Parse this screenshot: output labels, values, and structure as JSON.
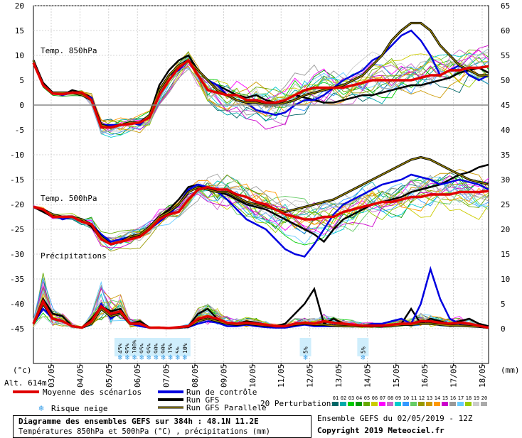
{
  "chart_data": {
    "type": "line",
    "date_labels": [
      "03/05",
      "04/05",
      "05/05",
      "06/05",
      "07/05",
      "08/05",
      "09/05",
      "10/05",
      "11/05",
      "12/05",
      "13/05",
      "14/05",
      "15/05",
      "16/05",
      "17/05",
      "18/05"
    ],
    "left_axis_ticks": [
      "20",
      "15",
      "10",
      "5",
      "0",
      "-5",
      "-10",
      "-15",
      "-20",
      "-25",
      "-30",
      "-35",
      "-40",
      "-45"
    ],
    "right_axis_ticks": [
      "65",
      "60",
      "55",
      "50",
      "45",
      "40",
      "35",
      "30",
      "25",
      "20",
      "15",
      "10",
      "5",
      "0"
    ],
    "left_unit": "(°c)",
    "right_unit": "(mm)",
    "altitude": "Alt. 614m",
    "panels": {
      "t850_label": "Temp. 850hPa",
      "t500_label": "Temp. 500hPa",
      "precip_label": "Précipitations"
    },
    "series": [
      {
        "name": "Moyenne des scénarios",
        "color": "#e00000",
        "t850": [
          8.5,
          4,
          2.3,
          2.2,
          2.5,
          2.5,
          1,
          -4.5,
          -4.5,
          -4,
          -3.8,
          -3.5,
          -2.5,
          2,
          5,
          7.5,
          9,
          6,
          3,
          2.5,
          2,
          2,
          1,
          1,
          0.5,
          0.5,
          1,
          2,
          3,
          3.5,
          3.5,
          3.5,
          3.5,
          4,
          4.5,
          5,
          5,
          5,
          5,
          5,
          5.5,
          6,
          6,
          7,
          7,
          7.5,
          7.5,
          7.8
        ],
        "t500": [
          -20.5,
          -21,
          -22.5,
          -22.5,
          -22.5,
          -23.5,
          -24,
          -27,
          -28,
          -27.5,
          -27,
          -26.5,
          -25,
          -23,
          -22,
          -21.5,
          -19,
          -17,
          -16.5,
          -17,
          -17,
          -18,
          -18.5,
          -19.5,
          -20,
          -21,
          -22,
          -22.5,
          -23,
          -23,
          -22.5,
          -22.5,
          -21.5,
          -21,
          -20.5,
          -20,
          -19.5,
          -19.5,
          -19,
          -18.5,
          -18.5,
          -18,
          -18,
          -18,
          -17.5,
          -17.5,
          -17.5,
          -17.3
        ],
        "precip": [
          1,
          5.5,
          2,
          1.5,
          0.5,
          0.2,
          1.5,
          4.5,
          3,
          3.5,
          1,
          1,
          0.2,
          0.2,
          0.1,
          0.3,
          0.5,
          2,
          2.5,
          2,
          1.2,
          1,
          1.2,
          1,
          0.8,
          0.5,
          0.5,
          1,
          1.2,
          1,
          1.5,
          1.2,
          1,
          0.8,
          0.6,
          0.6,
          0.6,
          0.8,
          1,
          1,
          1.5,
          1.5,
          1.2,
          1,
          1.2,
          1,
          0.6,
          0.2
        ]
      },
      {
        "name": "Run de contrôle",
        "color": "#0000e0",
        "t850": [
          9,
          4,
          2.5,
          2,
          2.5,
          2,
          1.5,
          -4,
          -4,
          -4,
          -3.5,
          -4,
          -2,
          3,
          6,
          7,
          9,
          7,
          5,
          4,
          2,
          1,
          0.5,
          -1,
          -1.5,
          -2,
          -1.5,
          0,
          1,
          1,
          2,
          3.5,
          5,
          6,
          7,
          9,
          10,
          12,
          14,
          15,
          13,
          10,
          6,
          7,
          8,
          6,
          5,
          6
        ],
        "t500": [
          -20.5,
          -21,
          -22,
          -23,
          -22.5,
          -23,
          -24,
          -26,
          -27.5,
          -27,
          -26.5,
          -26,
          -25,
          -23.5,
          -22,
          -20,
          -17,
          -16,
          -16.5,
          -17.5,
          -19,
          -21,
          -23,
          -24,
          -25,
          -27,
          -29,
          -30,
          -30.5,
          -28,
          -25,
          -22,
          -20,
          -19,
          -18,
          -17,
          -16,
          -15.5,
          -15,
          -14,
          -14.5,
          -15,
          -16,
          -15.5,
          -15,
          -15.5,
          -16,
          -17
        ],
        "precip": [
          1,
          4,
          2,
          1.5,
          0.5,
          0.2,
          1,
          5,
          2,
          3.5,
          1,
          0.5,
          0.2,
          0.2,
          0.1,
          0.2,
          0.3,
          1,
          1.5,
          1.2,
          0.5,
          0.5,
          0.8,
          0.5,
          0.3,
          0.2,
          0.2,
          0.5,
          0.8,
          0.5,
          0.5,
          0.5,
          0.5,
          0.5,
          0.5,
          1,
          1,
          1.5,
          2,
          1,
          5,
          12,
          6,
          2,
          1,
          1,
          0.5,
          0.3
        ]
      },
      {
        "name": "Run GFS",
        "color": "#000000",
        "t850": [
          9,
          4.5,
          2.5,
          2,
          3,
          2.5,
          1.5,
          -4,
          -4.5,
          -4,
          -3.5,
          -3.5,
          -2,
          4,
          7,
          9,
          10,
          7,
          5,
          4,
          3,
          2,
          1.5,
          2,
          1,
          0.5,
          1,
          2,
          1.5,
          1,
          0.5,
          0.5,
          1,
          1.5,
          2,
          2,
          2.5,
          3,
          3.5,
          4,
          4,
          4.5,
          5,
          5.5,
          6.5,
          7,
          7.5,
          6.5
        ],
        "t500": [
          -20.5,
          -21.5,
          -22.5,
          -22.5,
          -22.5,
          -23,
          -24.5,
          -27,
          -28,
          -27.5,
          -27,
          -26,
          -24.5,
          -22.5,
          -21,
          -19,
          -16.5,
          -16,
          -17,
          -17.5,
          -18,
          -19,
          -20,
          -20.5,
          -21,
          -22,
          -23,
          -24,
          -25,
          -26,
          -27.5,
          -25,
          -23,
          -22,
          -21,
          -20,
          -19.5,
          -19,
          -18.5,
          -17.5,
          -17,
          -16.5,
          -16,
          -15,
          -14,
          -13.5,
          -12.5,
          -12
        ],
        "precip": [
          1,
          6,
          3,
          2.5,
          0.5,
          0.2,
          2,
          4.5,
          3.5,
          4,
          1,
          1.5,
          0.2,
          0.2,
          0.1,
          0.2,
          0.5,
          3,
          4,
          2,
          1,
          1,
          1.5,
          1.2,
          0.8,
          0.5,
          1,
          3,
          5,
          8,
          1,
          2,
          1,
          0.5,
          0.5,
          0.5,
          0.5,
          0.5,
          1,
          4,
          1,
          2,
          1.5,
          1,
          1.5,
          2,
          1,
          0.5
        ]
      },
      {
        "name": "Run GFS Parallele",
        "color": "#a08a00",
        "t850": [
          9,
          4,
          2.5,
          2.5,
          2.5,
          2,
          1,
          -4,
          -4.5,
          -4,
          -3.5,
          -3.5,
          -2,
          3,
          6,
          8,
          9,
          7,
          5,
          3,
          2,
          1,
          0.5,
          0.5,
          0,
          0,
          0.5,
          1,
          2,
          2.5,
          3,
          3.5,
          4,
          5,
          6,
          8,
          10,
          13,
          15,
          16.5,
          16.5,
          15,
          12,
          10,
          8,
          7,
          6,
          6
        ],
        "t500": [
          -20.5,
          -21,
          -22,
          -22.5,
          -22.5,
          -23,
          -24,
          -26.5,
          -28,
          -27.5,
          -26.5,
          -26,
          -24.5,
          -22.5,
          -21.5,
          -20,
          -17.5,
          -16.5,
          -17,
          -17.5,
          -17.5,
          -18.5,
          -19.5,
          -20,
          -20.5,
          -21,
          -21.5,
          -21,
          -20.5,
          -20,
          -19.5,
          -19,
          -18,
          -17,
          -16,
          -15,
          -14,
          -13,
          -12,
          -11,
          -10.5,
          -11,
          -12,
          -13,
          -14,
          -15,
          -15.5,
          -16
        ],
        "precip": [
          1,
          5,
          2,
          1.5,
          0.5,
          0.2,
          1,
          4,
          2.5,
          3,
          1,
          1,
          0.2,
          0.2,
          0.1,
          0.2,
          0.4,
          1.5,
          2,
          1.5,
          1,
          0.8,
          1,
          0.8,
          0.6,
          0.5,
          0.5,
          0.8,
          1,
          0.8,
          0.8,
          0.6,
          0.5,
          0.5,
          0.5,
          0.5,
          0.5,
          0.5,
          0.8,
          0.8,
          1,
          1,
          0.8,
          0.6,
          0.6,
          0.5,
          0.4,
          0.2
        ]
      }
    ],
    "snow_risk": [
      {
        "date_index": 2.4,
        "pct": "45%"
      },
      {
        "date_index": 2.65,
        "pct": "95%"
      },
      {
        "date_index": 2.9,
        "pct": "100%"
      },
      {
        "date_index": 3.15,
        "pct": "95%"
      },
      {
        "date_index": 3.4,
        "pct": "95%"
      },
      {
        "date_index": 3.65,
        "pct": "90%"
      },
      {
        "date_index": 3.9,
        "pct": "90%"
      },
      {
        "date_index": 4.15,
        "pct": "15%"
      },
      {
        "date_index": 4.4,
        "pct": "5%"
      },
      {
        "date_index": 4.65,
        "pct": "10%"
      },
      {
        "date_index": 8.85,
        "pct": "5%"
      },
      {
        "date_index": 10.85,
        "pct": "5%"
      }
    ],
    "perturbation_colors": [
      "#006666",
      "#00aaaa",
      "#00cc00",
      "#009900",
      "#66aa00",
      "#cccc00",
      "#ff00ff",
      "#cc66cc",
      "#00cccc",
      "#3399ff",
      "#66cc66",
      "#999900",
      "#cc9900",
      "#ff9900",
      "#cc00cc",
      "#999999",
      "#66ccff",
      "#99cc00",
      "#cccccc",
      "#aaaaaa"
    ],
    "grid": true
  },
  "legend": {
    "mean": "Moyenne des scénarios",
    "control": "Run de contrôle",
    "gfs": "Run GFS",
    "gfs_parallel": "Run GFS Parallele",
    "snow": "Risque neige",
    "perturbations": "20 Perturbations",
    "perturbation_numbers": [
      "01",
      "02",
      "03",
      "04",
      "05",
      "06",
      "07",
      "08",
      "09",
      "10",
      "11",
      "12",
      "13",
      "14",
      "15",
      "16",
      "17",
      "18",
      "19",
      "20"
    ]
  },
  "footer": {
    "title": "Diagramme des ensembles GEFS sur 384h : 48.1N 11.2E",
    "subtitle": "Températures 850hPa et 500hPa (°C) , précipitations (mm)",
    "ensemble": "Ensemble GEFS du 02/05/2019 - 12Z",
    "copyright": "Copyright 2019 Meteociel.fr"
  }
}
